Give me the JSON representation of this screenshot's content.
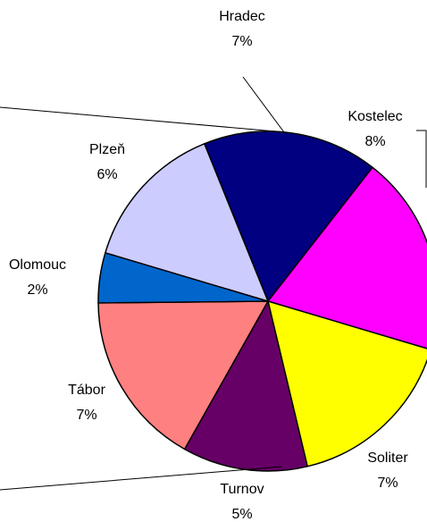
{
  "chart_data": {
    "type": "pie",
    "categories": [
      "Hradec",
      "Kostelec",
      "Soliter",
      "Turnov",
      "Tábor",
      "Olomouc",
      "Plzeň"
    ],
    "values": [
      7,
      8,
      7,
      5,
      7,
      2,
      6
    ],
    "value_labels": [
      "7%",
      "8%",
      "7%",
      "5%",
      "7%",
      "2%",
      "6%"
    ],
    "colors": [
      "#000080",
      "#ff00ff",
      "#ffff00",
      "#660066",
      "#ff8080",
      "#0066cc",
      "#ccccff"
    ]
  }
}
